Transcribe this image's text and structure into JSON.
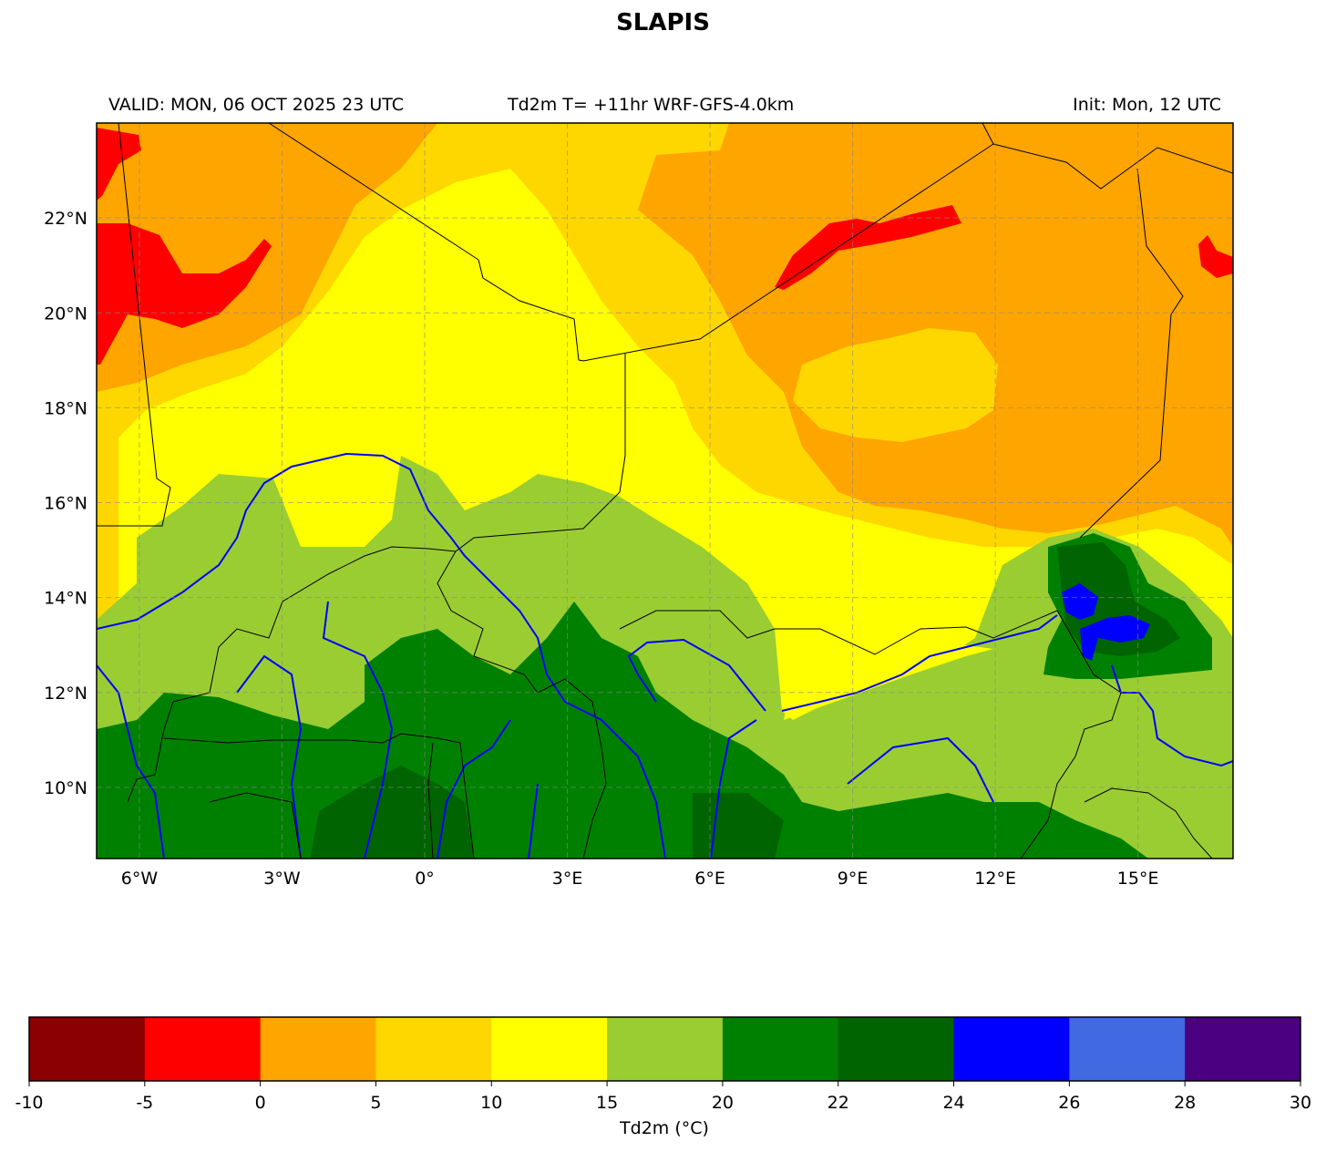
{
  "title": "SLAPIS",
  "subtitle": {
    "left": "VALID: MON, 06 OCT 2025 23 UTC",
    "center": "Td2m T= +11hr WRF-GFS-4.0km",
    "right": "Init: Mon, 12 UTC"
  },
  "map": {
    "lon_labels": [
      "6°W",
      "3°W",
      "0°",
      "3°E",
      "6°E",
      "9°E",
      "12°E",
      "15°E"
    ],
    "lon_values": [
      -6,
      -3,
      0,
      3,
      6,
      9,
      12,
      15
    ],
    "lat_labels": [
      "22°N",
      "20°N",
      "18°N",
      "16°N",
      "14°N",
      "12°N",
      "10°N"
    ],
    "lat_values": [
      22,
      20,
      18,
      16,
      14,
      12,
      10
    ],
    "lon_range": [
      -6.9,
      17.0
    ],
    "lat_range": [
      8.5,
      24.0
    ],
    "gridlines": true
  },
  "colorbar": {
    "label": "Td2m (°C)",
    "levels": [
      "-10",
      "-5",
      "0",
      "5",
      "10",
      "15",
      "20",
      "22",
      "24",
      "26",
      "28",
      "30"
    ],
    "colors": [
      "#8b0000",
      "#ff0000",
      "#ffa500",
      "#ffd700",
      "#ffff00",
      "#9acd32",
      "#008000",
      "#006400",
      "#0000ff",
      "#4169e1",
      "#4b0082"
    ]
  }
}
